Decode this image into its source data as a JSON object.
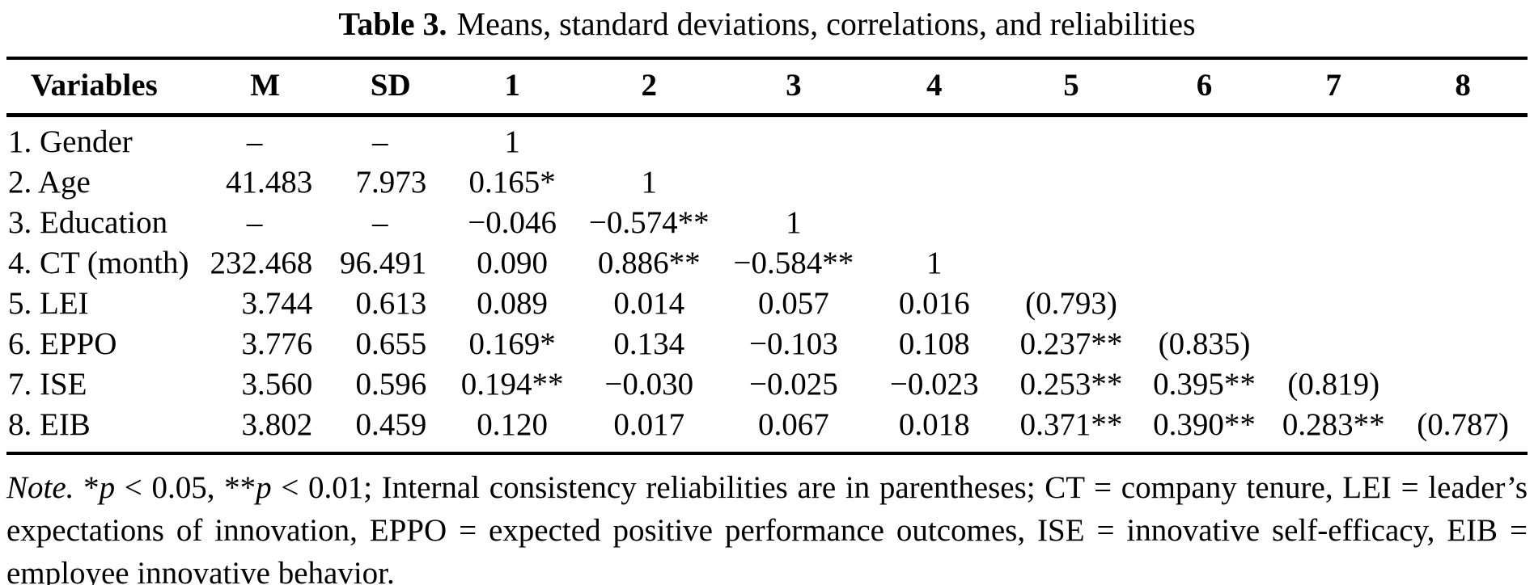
{
  "title": {
    "label": "Table 3.",
    "text": "Means, standard deviations, correlations, and reliabilities"
  },
  "table": {
    "headers": [
      "Variables",
      "M",
      "SD",
      "1",
      "2",
      "3",
      "4",
      "5",
      "6",
      "7",
      "8"
    ],
    "rows": [
      [
        "1. Gender",
        "–",
        "–",
        "1",
        "",
        "",
        "",
        "",
        "",
        "",
        ""
      ],
      [
        "2. Age",
        "41.483",
        "7.973",
        "0.165*",
        "1",
        "",
        "",
        "",
        "",
        "",
        ""
      ],
      [
        "3. Education",
        "–",
        "–",
        "−0.046",
        "−0.574**",
        "1",
        "",
        "",
        "",
        "",
        ""
      ],
      [
        "4. CT (month)",
        "232.468",
        "96.491",
        "0.090",
        "0.886**",
        "−0.584**",
        "1",
        "",
        "",
        "",
        ""
      ],
      [
        "5. LEI",
        "3.744",
        "0.613",
        "0.089",
        "0.014",
        "0.057",
        "0.016",
        "(0.793)",
        "",
        "",
        ""
      ],
      [
        "6. EPPO",
        "3.776",
        "0.655",
        "0.169*",
        "0.134",
        "−0.103",
        "0.108",
        "0.237**",
        "(0.835)",
        "",
        ""
      ],
      [
        "7. ISE",
        "3.560",
        "0.596",
        "0.194**",
        "−0.030",
        "−0.025",
        "−0.023",
        "0.253**",
        "0.395**",
        "(0.819)",
        ""
      ],
      [
        "8. EIB",
        "3.802",
        "0.459",
        "0.120",
        "0.017",
        "0.067",
        "0.018",
        "0.371**",
        "0.390**",
        "0.283**",
        "(0.787)"
      ]
    ]
  },
  "note": {
    "label": "Note.",
    "seg1": " *",
    "p1": "p",
    "seg2": " < 0.05, **",
    "p2": "p",
    "seg3": " < 0.01; Internal consistency reliabilities are in parentheses; CT = company tenure, LEI = leader’s expectations of innovation, EPPO = expected positive performance outcomes, ISE = innovative self-efficacy, EIB = employee innovative behavior."
  }
}
